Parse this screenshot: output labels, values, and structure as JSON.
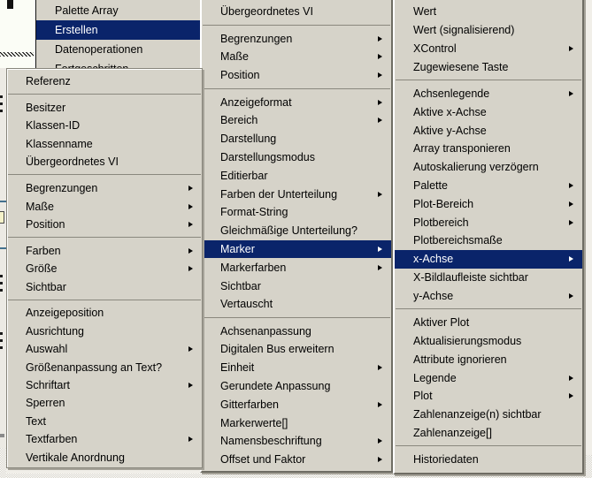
{
  "colors": {
    "page_bg": "#f1efe9",
    "menu_face": "#d6d3c9",
    "menu_text": "#000000",
    "highlight": "#0a246a",
    "highlight_text": "#ffffff",
    "separator": "#8a887e",
    "outline": "#87857b",
    "border_dark": "#6e6c63",
    "shadow": "#a5a298",
    "panel_white": "#fbfdf6",
    "teal": "#44718e",
    "note_fill": "#f5f2c9"
  },
  "icons": {
    "submenu_arrow": "right-pointing-triangle"
  },
  "menus": {
    "create": {
      "title": "context-menu",
      "items": [
        {
          "label": "Palette Array"
        },
        {
          "label": "Erstellen",
          "selected": true
        },
        {
          "label": "Datenoperationen"
        },
        {
          "label": "Fortgeschritten"
        }
      ]
    },
    "left": {
      "title": "property-cascade-left",
      "items": [
        {
          "label": "Referenz"
        },
        {
          "sep": true
        },
        {
          "label": "Besitzer"
        },
        {
          "label": "Klassen-ID"
        },
        {
          "label": "Klassenname"
        },
        {
          "label": "Übergeordnetes VI"
        },
        {
          "sep": true
        },
        {
          "label": "Begrenzungen",
          "arrow": true
        },
        {
          "label": "Maße",
          "arrow": true
        },
        {
          "label": "Position",
          "arrow": true
        },
        {
          "sep": true
        },
        {
          "label": "Farben",
          "arrow": true
        },
        {
          "label": "Größe",
          "arrow": true
        },
        {
          "label": "Sichtbar"
        },
        {
          "sep": true
        },
        {
          "label": "Anzeigeposition"
        },
        {
          "label": "Ausrichtung"
        },
        {
          "label": "Auswahl",
          "arrow": true
        },
        {
          "label": "Größenanpassung an Text?"
        },
        {
          "label": "Schriftart",
          "arrow": true
        },
        {
          "label": "Sperren"
        },
        {
          "label": "Text"
        },
        {
          "label": "Textfarben",
          "arrow": true
        },
        {
          "label": "Vertikale Anordnung"
        }
      ]
    },
    "middle": {
      "title": "property-cascade-middle",
      "items": [
        {
          "label": "Übergeordnetes VI"
        },
        {
          "sep": true
        },
        {
          "label": "Begrenzungen",
          "arrow": true
        },
        {
          "label": "Maße",
          "arrow": true
        },
        {
          "label": "Position",
          "arrow": true
        },
        {
          "sep": true
        },
        {
          "label": "Anzeigeformat",
          "arrow": true
        },
        {
          "label": "Bereich",
          "arrow": true
        },
        {
          "label": "Darstellung"
        },
        {
          "label": "Darstellungsmodus"
        },
        {
          "label": "Editierbar"
        },
        {
          "label": "Farben der Unterteilung",
          "arrow": true
        },
        {
          "label": "Format-String"
        },
        {
          "label": "Gleichmäßige Unterteilung?"
        },
        {
          "label": "Marker",
          "arrow": true,
          "selected": true
        },
        {
          "label": "Markerfarben",
          "arrow": true
        },
        {
          "label": "Sichtbar"
        },
        {
          "label": "Vertauscht"
        },
        {
          "sep": true
        },
        {
          "label": "Achsenanpassung"
        },
        {
          "label": "Digitalen Bus erweitern"
        },
        {
          "label": "Einheit",
          "arrow": true
        },
        {
          "label": "Gerundete Anpassung"
        },
        {
          "label": "Gitterfarben",
          "arrow": true
        },
        {
          "label": "Markerwerte[]"
        },
        {
          "label": "Namensbeschriftung",
          "arrow": true
        },
        {
          "label": "Offset und Faktor",
          "arrow": true
        }
      ]
    },
    "right": {
      "title": "property-cascade-right",
      "items": [
        {
          "label": "Wert"
        },
        {
          "label": "Wert (signalisierend)"
        },
        {
          "label": "XControl",
          "arrow": true
        },
        {
          "label": "Zugewiesene Taste"
        },
        {
          "sep": true
        },
        {
          "label": "Achsenlegende",
          "arrow": true
        },
        {
          "label": "Aktive x-Achse"
        },
        {
          "label": "Aktive y-Achse"
        },
        {
          "label": "Array transponieren"
        },
        {
          "label": "Autoskalierung verzögern"
        },
        {
          "label": "Palette",
          "arrow": true
        },
        {
          "label": "Plot-Bereich",
          "arrow": true
        },
        {
          "label": "Plotbereich",
          "arrow": true
        },
        {
          "label": "Plotbereichsmaße"
        },
        {
          "label": "x-Achse",
          "arrow": true,
          "selected": true
        },
        {
          "label": "X-Bildlaufleiste sichtbar"
        },
        {
          "label": "y-Achse",
          "arrow": true
        },
        {
          "sep": true
        },
        {
          "label": "Aktiver Plot"
        },
        {
          "label": "Aktualisierungsmodus"
        },
        {
          "label": "Attribute ignorieren"
        },
        {
          "label": "Legende",
          "arrow": true
        },
        {
          "label": "Plot",
          "arrow": true
        },
        {
          "label": "Zahlenanzeige(n) sichtbar"
        },
        {
          "label": "Zahlenanzeige[]"
        },
        {
          "sep": true
        },
        {
          "label": "Historiedaten"
        }
      ]
    }
  }
}
